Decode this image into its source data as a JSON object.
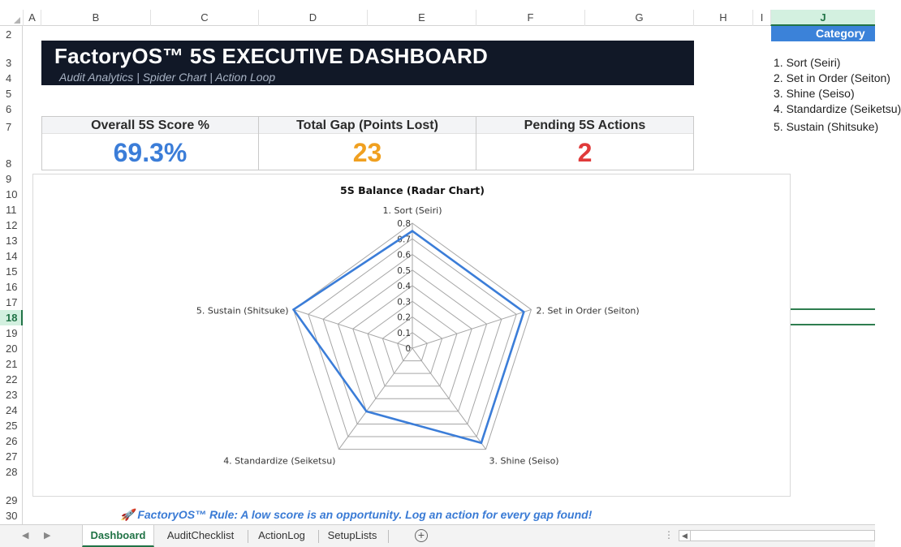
{
  "columns": [
    "A",
    "B",
    "C",
    "D",
    "E",
    "F",
    "G",
    "H",
    "I",
    "J"
  ],
  "selected_column": "J",
  "rows": [
    "2",
    "3",
    "4",
    "5",
    "6",
    "7",
    "8",
    "9",
    "10",
    "11",
    "12",
    "13",
    "14",
    "15",
    "16",
    "17",
    "18",
    "19",
    "20",
    "21",
    "22",
    "23",
    "24",
    "25",
    "26",
    "27",
    "28",
    "29",
    "30"
  ],
  "selected_row": "18",
  "banner": {
    "title": "FactoryOS™ 5S EXECUTIVE DASHBOARD",
    "subtitle": "Audit Analytics | Spider Chart | Action Loop",
    "bg_color": "#111827"
  },
  "kpis": [
    {
      "label": "Overall 5S Score %",
      "value": "69.3%",
      "color": "#3b7dd8"
    },
    {
      "label": "Total Gap (Points Lost)",
      "value": "23",
      "color": "#f0a020"
    },
    {
      "label": "Pending 5S Actions",
      "value": "2",
      "color": "#e03a3a"
    }
  ],
  "chart_data": {
    "type": "radar",
    "title": "5S Balance (Radar Chart)",
    "categories": [
      "1. Sort (Seiri)",
      "2. Set in Order (Seiton)",
      "3. Shine (Seiso)",
      "4. Standardize (Seiketsu)",
      "5. Sustain (Shitsuke)"
    ],
    "series": [
      {
        "values": [
          0.75,
          0.75,
          0.75,
          0.5,
          0.8
        ],
        "color": "#3b7dd8"
      }
    ],
    "r_ticks": [
      "0",
      "0.1",
      "0.2",
      "0.3",
      "0.4",
      "0.5",
      "0.6",
      "0.7",
      "0.8"
    ],
    "rlim": [
      0,
      0.8
    ],
    "grid": true
  },
  "category_panel": {
    "header": "Category",
    "items": [
      "1. Sort (Seiri)",
      "2. Set in Order (Seiton)",
      "3. Shine (Seiso)",
      "4. Standardize (Seiketsu)",
      "5. Sustain (Shitsuke)"
    ]
  },
  "rule_text": "🚀 FactoryOS™ Rule: A low score is an opportunity. Log an action for every gap found!",
  "sheet_tabs": [
    "Dashboard",
    "AuditChecklist",
    "ActionLog",
    "SetupLists"
  ],
  "active_tab": "Dashboard"
}
